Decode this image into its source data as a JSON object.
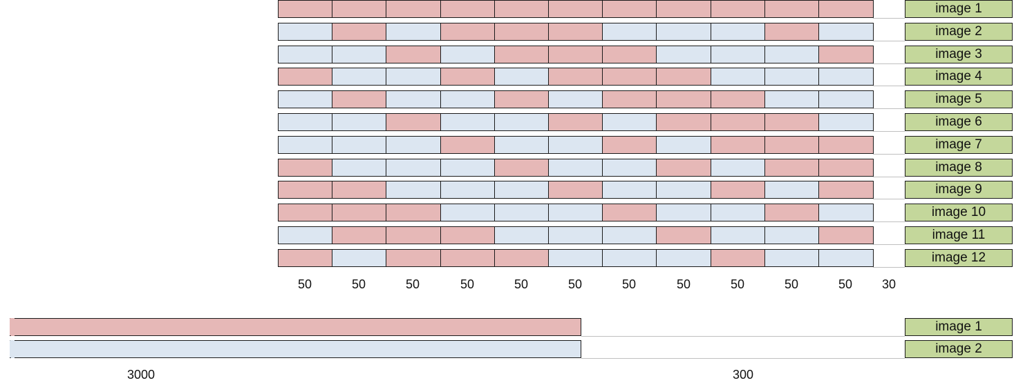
{
  "colors": {
    "selected": "#e6b8b7",
    "unselected": "#dce6f1",
    "label_bg": "#c4d79b",
    "border": "#1a1a1a",
    "guide_line": "#bfbfbf"
  },
  "grid": {
    "rows": [
      {
        "label": "image 1",
        "cells": [
          1,
          1,
          1,
          1,
          1,
          1,
          1,
          1,
          1,
          1,
          1
        ]
      },
      {
        "label": "image 2",
        "cells": [
          0,
          1,
          0,
          1,
          1,
          1,
          0,
          0,
          0,
          1,
          0
        ]
      },
      {
        "label": "image 3",
        "cells": [
          0,
          0,
          1,
          0,
          1,
          1,
          1,
          0,
          0,
          0,
          1
        ]
      },
      {
        "label": "image 4",
        "cells": [
          1,
          0,
          0,
          1,
          0,
          1,
          1,
          1,
          0,
          0,
          0
        ]
      },
      {
        "label": "image 5",
        "cells": [
          0,
          1,
          0,
          0,
          1,
          0,
          1,
          1,
          1,
          0,
          0
        ]
      },
      {
        "label": "image 6",
        "cells": [
          0,
          0,
          1,
          0,
          0,
          1,
          0,
          1,
          1,
          1,
          0
        ]
      },
      {
        "label": "image 7",
        "cells": [
          0,
          0,
          0,
          1,
          0,
          0,
          1,
          0,
          1,
          1,
          1
        ]
      },
      {
        "label": "image 8",
        "cells": [
          1,
          0,
          0,
          0,
          1,
          0,
          0,
          1,
          0,
          1,
          1
        ]
      },
      {
        "label": "image 9",
        "cells": [
          1,
          1,
          0,
          0,
          0,
          1,
          0,
          0,
          1,
          0,
          1
        ]
      },
      {
        "label": "image 10",
        "cells": [
          1,
          1,
          1,
          0,
          0,
          0,
          1,
          0,
          0,
          1,
          0
        ]
      },
      {
        "label": "image 11",
        "cells": [
          0,
          1,
          1,
          1,
          0,
          0,
          0,
          1,
          0,
          0,
          1
        ]
      },
      {
        "label": "image 12",
        "cells": [
          1,
          0,
          1,
          1,
          1,
          0,
          0,
          0,
          1,
          0,
          0
        ]
      }
    ],
    "widths": [
      "50",
      "50",
      "50",
      "50",
      "50",
      "50",
      "50",
      "50",
      "50",
      "50",
      "50"
    ],
    "gap_width": "30"
  },
  "bottom": {
    "rows": [
      {
        "label": "image 1",
        "selected": true
      },
      {
        "label": "image 2",
        "selected": false
      }
    ],
    "bar_width": "3000",
    "gap_width": "300"
  }
}
